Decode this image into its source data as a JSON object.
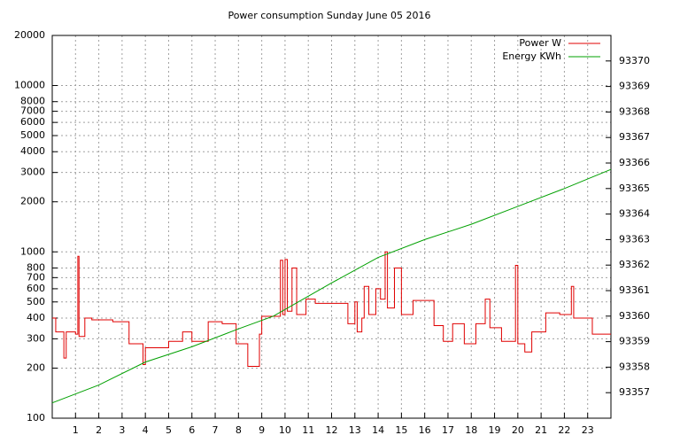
{
  "chart_data": {
    "type": "line",
    "title": "Power consumption Sunday June 05 2016",
    "xlim": [
      0,
      24
    ],
    "xticks": [
      1,
      2,
      3,
      4,
      5,
      6,
      7,
      8,
      9,
      10,
      11,
      12,
      13,
      14,
      15,
      16,
      17,
      18,
      19,
      20,
      21,
      22,
      23
    ],
    "ylim": [
      100,
      20000
    ],
    "log_y": true,
    "yticks": [
      100,
      200,
      300,
      400,
      500,
      600,
      700,
      800,
      1000,
      2000,
      3000,
      4000,
      5000,
      6000,
      7000,
      8000,
      10000,
      20000
    ],
    "y2lim": [
      93356,
      93371
    ],
    "y2ticks": [
      93357,
      93358,
      93359,
      93360,
      93361,
      93362,
      93363,
      93364,
      93365,
      93366,
      93367,
      93368,
      93369,
      93370
    ],
    "grid": true,
    "legend": "top-right",
    "series": [
      {
        "name": "Power W",
        "color": "#e00000",
        "steps": true,
        "x": [
          0,
          0.15,
          0.5,
          0.6,
          1.0,
          1.1,
          1.15,
          1.4,
          1.7,
          2.6,
          3.3,
          3.9,
          4.0,
          5.0,
          5.6,
          6.0,
          6.7,
          7.3,
          7.9,
          8.4,
          8.9,
          9.0,
          9.8,
          9.9,
          10.0,
          10.1,
          10.3,
          10.5,
          10.9,
          11.3,
          12.7,
          13.0,
          13.1,
          13.3,
          13.4,
          13.6,
          13.9,
          14.1,
          14.3,
          14.4,
          14.7,
          15.0,
          15.5,
          16.4,
          16.8,
          17.2,
          17.7,
          18.2,
          18.6,
          18.8,
          19.3,
          19.9,
          20.0,
          20.3,
          20.6,
          21.2,
          21.8,
          22.3,
          22.4,
          23.2,
          24
        ],
        "values": [
          400,
          330,
          230,
          330,
          320,
          940,
          310,
          400,
          390,
          380,
          280,
          210,
          265,
          290,
          330,
          290,
          380,
          370,
          280,
          205,
          320,
          410,
          890,
          420,
          900,
          440,
          800,
          420,
          520,
          490,
          370,
          500,
          330,
          400,
          620,
          420,
          600,
          520,
          1000,
          460,
          800,
          420,
          510,
          360,
          290,
          370,
          280,
          370,
          520,
          350,
          290,
          830,
          280,
          250,
          330,
          430,
          420,
          620,
          400,
          320,
          320
        ]
      },
      {
        "name": "Energy KWh",
        "color": "#00a000",
        "axis": "y2",
        "x": [
          0,
          2,
          4,
          6,
          8,
          9.5,
          12,
          14,
          16,
          18,
          20,
          22,
          24
        ],
        "values": [
          93356.6,
          93357.3,
          93358.2,
          93358.8,
          93359.5,
          93360.0,
          93361.3,
          93362.3,
          93363.0,
          93363.6,
          93364.3,
          93365.0,
          93365.75
        ]
      }
    ]
  }
}
